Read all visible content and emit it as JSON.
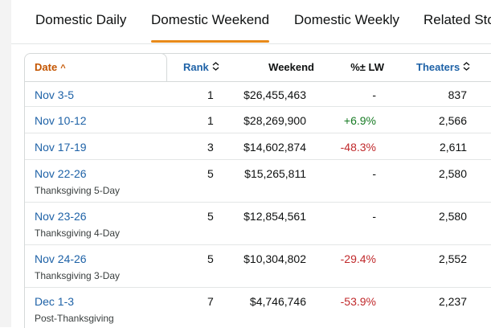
{
  "tabs": [
    {
      "label": "Domestic Daily",
      "active": false
    },
    {
      "label": "Domestic Weekend",
      "active": true
    },
    {
      "label": "Domestic Weekly",
      "active": false
    },
    {
      "label": "Related Sto",
      "active": false
    }
  ],
  "table": {
    "headers": {
      "date": "Date",
      "rank": "Rank",
      "weekend": "Weekend",
      "change": "%± LW",
      "theaters": "Theaters"
    },
    "sort_icons": {
      "date": "caret-up-icon",
      "rank": "sort-toggle-icon",
      "theaters": "sort-toggle-icon"
    },
    "rows": [
      {
        "date": "Nov 3-5",
        "note": "",
        "rank": "1",
        "gross": "$26,455,463",
        "change": "-",
        "change_dir": "none",
        "theaters": "837"
      },
      {
        "date": "Nov 10-12",
        "note": "",
        "rank": "1",
        "gross": "$28,269,900",
        "change": "+6.9%",
        "change_dir": "pos",
        "theaters": "2,566"
      },
      {
        "date": "Nov 17-19",
        "note": "",
        "rank": "3",
        "gross": "$14,602,874",
        "change": "-48.3%",
        "change_dir": "neg",
        "theaters": "2,611"
      },
      {
        "date": "Nov 22-26",
        "note": "Thanksgiving 5-Day",
        "rank": "5",
        "gross": "$15,265,811",
        "change": "-",
        "change_dir": "none",
        "theaters": "2,580"
      },
      {
        "date": "Nov 23-26",
        "note": "Thanksgiving 4-Day",
        "rank": "5",
        "gross": "$12,854,561",
        "change": "-",
        "change_dir": "none",
        "theaters": "2,580"
      },
      {
        "date": "Nov 24-26",
        "note": "Thanksgiving 3-Day",
        "rank": "5",
        "gross": "$10,304,802",
        "change": "-29.4%",
        "change_dir": "neg",
        "theaters": "2,552"
      },
      {
        "date": "Dec 1-3",
        "note": "Post-Thanksgiving",
        "rank": "7",
        "gross": "$4,746,746",
        "change": "-53.9%",
        "change_dir": "neg",
        "theaters": "2,237"
      }
    ]
  },
  "colors": {
    "link": "#1e62a7",
    "active_sort": "#c45500",
    "tab_underline": "#e88a1a",
    "positive": "#167a23",
    "negative": "#c0292b"
  }
}
